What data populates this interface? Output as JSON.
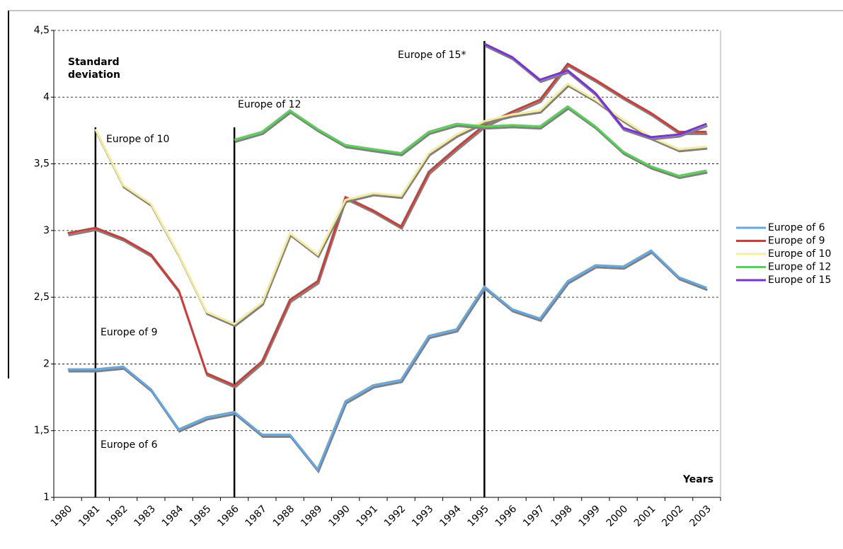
{
  "chart_data": {
    "type": "line",
    "ylabel": [
      "Standard",
      "deviation"
    ],
    "xlabel": "Years",
    "categories": [
      "1980",
      "1981",
      "1982",
      "1983",
      "1984",
      "1985",
      "1986",
      "1987",
      "1988",
      "1989",
      "1990",
      "1991",
      "1992",
      "1993",
      "1994",
      "1995",
      "1996",
      "1997",
      "1998",
      "1999",
      "2000",
      "2001",
      "2002",
      "2003"
    ],
    "series": [
      {
        "name": "Europe of 6",
        "color": "#62a8e8",
        "values": [
          1.96,
          1.96,
          1.98,
          1.81,
          1.51,
          1.6,
          1.64,
          1.47,
          1.47,
          1.21,
          1.72,
          1.84,
          1.88,
          2.21,
          2.26,
          2.58,
          2.41,
          2.34,
          2.62,
          2.74,
          2.73,
          2.85,
          2.65,
          2.57
        ]
      },
      {
        "name": "Europe of 9",
        "color": "#d23a35",
        "values": [
          2.98,
          3.02,
          2.94,
          2.82,
          2.55,
          1.93,
          1.84,
          2.02,
          2.48,
          2.62,
          3.25,
          3.15,
          3.03,
          3.44,
          3.62,
          3.79,
          3.89,
          3.98,
          4.25,
          4.13,
          4.0,
          3.88,
          3.74,
          3.74
        ]
      },
      {
        "name": "Europe of 10",
        "color": "#f7ec9c",
        "values": [
          null,
          3.76,
          3.34,
          3.2,
          2.82,
          2.39,
          2.3,
          2.46,
          2.98,
          2.82,
          3.23,
          3.28,
          3.26,
          3.58,
          3.72,
          3.82,
          3.87,
          3.9,
          4.1,
          3.98,
          3.83,
          3.7,
          3.61,
          3.63
        ]
      },
      {
        "name": "Europe of 12",
        "color": "#52d452",
        "values": [
          null,
          null,
          null,
          null,
          null,
          null,
          3.68,
          3.74,
          3.9,
          3.76,
          3.64,
          3.61,
          3.58,
          3.74,
          3.8,
          3.78,
          3.79,
          3.78,
          3.93,
          3.78,
          3.59,
          3.48,
          3.41,
          3.45
        ]
      },
      {
        "name": "Europe of 15",
        "color": "#7a30e0",
        "values": [
          null,
          null,
          null,
          null,
          null,
          null,
          null,
          null,
          null,
          null,
          null,
          null,
          null,
          null,
          null,
          4.4,
          4.3,
          4.13,
          4.2,
          4.03,
          3.77,
          3.7,
          3.72,
          3.8
        ]
      }
    ],
    "annotations": [
      "Europe of 15*",
      "Europe of 12",
      "Europe of 10",
      "Europe of 9",
      "Europe of 6"
    ],
    "vlines": [
      "1981",
      "1986",
      "1995"
    ],
    "ylim": [
      1,
      4.5
    ],
    "yticks": [
      1,
      {
        "value": 1.5,
        "label": "1,5"
      },
      2,
      {
        "value": 2.5,
        "label": "2,5"
      },
      3,
      {
        "value": 3.5,
        "label": "3,5"
      },
      4,
      {
        "value": 4.5,
        "label": "4,5"
      }
    ],
    "grid": true
  }
}
